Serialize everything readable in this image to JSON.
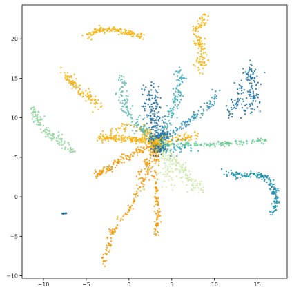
{
  "chart_data": {
    "type": "scatter",
    "title": "",
    "xlabel": "",
    "ylabel": "",
    "xlim": [
      -12.5,
      18.5
    ],
    "ylim": [
      -10.3,
      24.3
    ],
    "xticks": [
      -10,
      -5,
      0,
      5,
      10,
      15
    ],
    "yticks": [
      -10,
      -5,
      0,
      5,
      10,
      15,
      20
    ],
    "xtick_labels": [
      "−10",
      "−5",
      "0",
      "5",
      "10",
      "15"
    ],
    "ytick_labels": [
      "−10",
      "−5",
      "0",
      "5",
      "10",
      "15",
      "20"
    ],
    "grid": false,
    "legend": false,
    "point_size": 1.2,
    "center": [
      3.4,
      6.8
    ],
    "clusters": [
      {
        "color": "#f5b20e",
        "path": [
          [
            -5.0,
            20.2
          ],
          [
            -4.0,
            21.0
          ],
          [
            -2.0,
            21.2
          ],
          [
            0.0,
            20.8
          ],
          [
            1.5,
            20.3
          ]
        ],
        "spread": 0.2,
        "n": 140
      },
      {
        "color": "#f5b20e",
        "path": [
          [
            8.9,
            23.0
          ],
          [
            8.0,
            21.5
          ],
          [
            8.4,
            19.5
          ],
          [
            8.6,
            17.5
          ],
          [
            8.2,
            16.0
          ]
        ],
        "spread": 0.3,
        "n": 130
      },
      {
        "color": "#f5b20e",
        "path": [
          [
            -7.8,
            15.8
          ],
          [
            -6.5,
            14.5
          ],
          [
            -5.8,
            13.2
          ],
          [
            -4.5,
            12.5
          ],
          [
            -3.5,
            11.5
          ]
        ],
        "spread": 0.3,
        "n": 110
      },
      {
        "color": "#f5b20e",
        "path": [
          [
            -3.5,
            7.6
          ],
          [
            -1.0,
            7.4
          ],
          [
            1.0,
            7.3
          ],
          [
            3.4,
            6.8
          ]
        ],
        "spread": 0.25,
        "n": 180
      },
      {
        "color": "#f5b20e",
        "path": [
          [
            -2.0,
            8.5
          ],
          [
            0.0,
            9.0
          ],
          [
            1.5,
            8.5
          ],
          [
            3.4,
            6.8
          ]
        ],
        "spread": 0.3,
        "n": 60
      },
      {
        "color": "#f5b20e",
        "path": [
          [
            3.4,
            6.8
          ],
          [
            5.5,
            7.2
          ],
          [
            7.5,
            7.7
          ],
          [
            8.2,
            7.8
          ]
        ],
        "spread": 0.25,
        "n": 70
      },
      {
        "color": "#f5b20e",
        "path": [
          [
            1.5,
            8.8
          ],
          [
            2.5,
            7.8
          ],
          [
            3.4,
            6.8
          ]
        ],
        "spread": 0.2,
        "n": 30
      },
      {
        "color": "#f29a0c",
        "path": [
          [
            3.4,
            6.8
          ],
          [
            1.5,
            6.0
          ],
          [
            -0.5,
            5.0
          ],
          [
            -2.5,
            3.5
          ],
          [
            -4.0,
            2.6
          ]
        ],
        "spread": 0.25,
        "n": 150
      },
      {
        "color": "#f29a0c",
        "path": [
          [
            3.4,
            6.8
          ],
          [
            2.5,
            5.0
          ],
          [
            1.5,
            3.5
          ],
          [
            1.0,
            2.5
          ]
        ],
        "spread": 0.2,
        "n": 50
      },
      {
        "color": "#f29a0c",
        "path": [
          [
            3.4,
            6.8
          ],
          [
            2.2,
            3.0
          ],
          [
            0.0,
            -1.5
          ],
          [
            -2.0,
            -4.5
          ],
          [
            -3.0,
            -8.6
          ]
        ],
        "spread": 0.2,
        "n": 160
      },
      {
        "color": "#f29a0c",
        "path": [
          [
            3.4,
            6.8
          ],
          [
            3.0,
            3.0
          ],
          [
            3.2,
            0.0
          ],
          [
            3.4,
            -2.5
          ],
          [
            3.2,
            -5.0
          ]
        ],
        "spread": 0.15,
        "n": 120
      },
      {
        "color": "#63bdb1",
        "path": [
          [
            3.4,
            6.8
          ],
          [
            1.0,
            9.0
          ],
          [
            -0.5,
            11.5
          ],
          [
            -1.0,
            13.5
          ],
          [
            -0.8,
            15.3
          ]
        ],
        "spread": 0.35,
        "n": 140
      },
      {
        "color": "#3ca9b6",
        "path": [
          [
            3.4,
            6.8
          ],
          [
            4.5,
            9.0
          ],
          [
            5.5,
            12.0
          ],
          [
            6.0,
            14.5
          ],
          [
            6.0,
            16.3
          ]
        ],
        "spread": 0.3,
        "n": 130
      },
      {
        "color": "#2d8fb2",
        "path": [
          [
            3.4,
            6.8
          ],
          [
            5.5,
            8.5
          ],
          [
            7.5,
            10.0
          ],
          [
            9.5,
            11.5
          ],
          [
            10.2,
            13.2
          ]
        ],
        "spread": 0.25,
        "n": 120
      },
      {
        "color": "#1e6fa0",
        "path": [
          [
            3.4,
            6.8
          ],
          [
            3.0,
            9.5
          ],
          [
            2.5,
            11.5
          ],
          [
            2.6,
            13.9
          ]
        ],
        "spread": 0.5,
        "n": 160
      },
      {
        "color": "#1e6fa0",
        "path": [
          [
            11.5,
            10.2
          ],
          [
            12.5,
            11.5
          ],
          [
            13.0,
            13.5
          ],
          [
            14.0,
            15.0
          ],
          [
            14.3,
            16.5
          ],
          [
            14.7,
            11.5
          ],
          [
            13.5,
            10.5
          ]
        ],
        "spread": 0.4,
        "n": 160
      },
      {
        "color": "#1e6fa0",
        "path": [
          [
            -7.8,
            -2.15
          ],
          [
            -7.3,
            -2.1
          ]
        ],
        "spread": 0.04,
        "n": 12
      },
      {
        "color": "#1a8fa9",
        "path": [
          [
            10.5,
            3.2
          ],
          [
            12.5,
            2.8
          ],
          [
            14.5,
            2.8
          ],
          [
            16.0,
            2.5
          ],
          [
            17.0,
            1.0
          ],
          [
            17.2,
            -1.0
          ],
          [
            16.9,
            -2.0
          ]
        ],
        "spread": 0.2,
        "n": 170
      },
      {
        "color": "#8fd39a",
        "path": [
          [
            -11.3,
            11.3
          ],
          [
            -10.5,
            9.5
          ],
          [
            -9.5,
            8.0
          ],
          [
            -8.0,
            7.0
          ],
          [
            -6.5,
            5.5
          ]
        ],
        "spread": 0.3,
        "n": 130
      },
      {
        "color": "#6ccd95",
        "path": [
          [
            3.4,
            6.8
          ],
          [
            6.5,
            6.5
          ],
          [
            10.0,
            6.6
          ],
          [
            13.5,
            6.9
          ],
          [
            16.0,
            7.2
          ]
        ],
        "spread": 0.15,
        "n": 160
      },
      {
        "color": "#c7e6a2",
        "path": [
          [
            3.4,
            6.8
          ],
          [
            5.0,
            4.5
          ],
          [
            6.5,
            3.0
          ],
          [
            7.5,
            1.5
          ],
          [
            8.5,
            0.8
          ]
        ],
        "spread": 0.45,
        "n": 150
      },
      {
        "color": "#d6ebb0",
        "path": [
          [
            3.4,
            6.8
          ],
          [
            4.0,
            5.0
          ],
          [
            4.5,
            3.0
          ],
          [
            5.0,
            1.0
          ]
        ],
        "spread": 0.35,
        "n": 60
      },
      {
        "color": "#3ca9b6",
        "path": [
          [
            3.4,
            6.8
          ],
          [
            5.5,
            6.0
          ],
          [
            7.5,
            6.3
          ]
        ],
        "spread": 0.4,
        "n": 60
      },
      {
        "color": "#1e6fa0",
        "path": [
          [
            3.4,
            6.8
          ],
          [
            4.2,
            6.0
          ],
          [
            3.0,
            6.0
          ],
          [
            2.6,
            7.6
          ],
          [
            4.0,
            7.8
          ]
        ],
        "spread": 0.35,
        "n": 100
      },
      {
        "color": "#f5b20e",
        "path": [
          [
            3.4,
            6.8
          ],
          [
            2.5,
            6.5
          ],
          [
            4.0,
            7.3
          ]
        ],
        "spread": 0.3,
        "n": 50
      }
    ]
  }
}
